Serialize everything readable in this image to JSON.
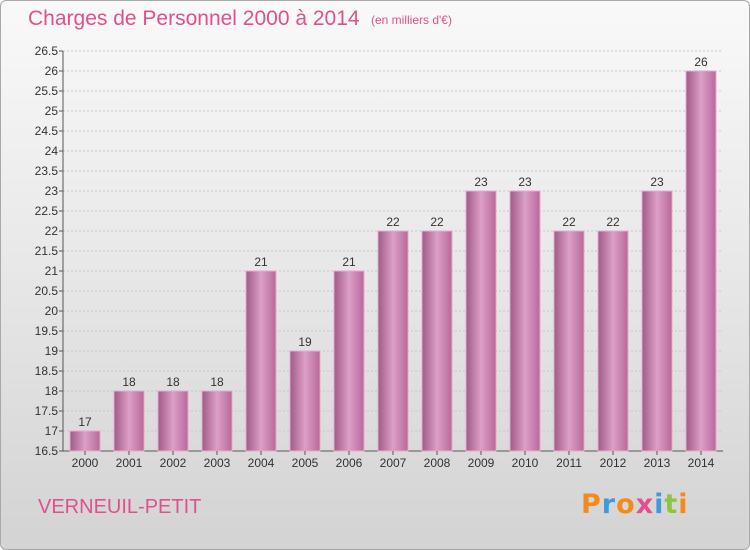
{
  "header": {
    "title": "Charges de Personnel 2000 à 2014",
    "subtitle": "(en milliers d'€)"
  },
  "footer": {
    "location": "VERNEUIL-PETIT",
    "brand_letters": [
      "P",
      "r",
      "o",
      "x",
      "i",
      "t",
      "i"
    ],
    "brand_colors": [
      "#f28a1c",
      "#3c9be0",
      "#f28a1c",
      "#e0508e",
      "#3c9be0",
      "#8cc63f",
      "#f28a1c"
    ]
  },
  "colors": {
    "bar_left": "#a05a86",
    "bar_mid": "#dc9fc6",
    "bar_right": "#b66a98",
    "bar_edge": "#e9a9cf",
    "grid": "#c8c8c8",
    "axis": "#555555"
  },
  "chart_data": {
    "type": "bar",
    "categories": [
      "2000",
      "2001",
      "2002",
      "2003",
      "2004",
      "2005",
      "2006",
      "2007",
      "2008",
      "2009",
      "2010",
      "2011",
      "2012",
      "2013",
      "2014"
    ],
    "values": [
      17,
      18,
      18,
      18,
      21,
      19,
      21,
      22,
      22,
      23,
      23,
      22,
      22,
      23,
      26
    ],
    "value_labels": [
      "17",
      "18",
      "18",
      "18",
      "21",
      "19",
      "21",
      "22",
      "22",
      "23",
      "23",
      "22",
      "22",
      "23",
      "26"
    ],
    "y_ticks": [
      "16.5",
      "17",
      "17.5",
      "18",
      "18.5",
      "19",
      "19.5",
      "20",
      "20.5",
      "21",
      "21.5",
      "22",
      "22.5",
      "23",
      "23.5",
      "24",
      "24.5",
      "25",
      "25.5",
      "26",
      "26.5"
    ],
    "ylim": [
      16.5,
      26.5
    ],
    "grid": true,
    "title": "Charges de Personnel 2000 à 2014",
    "xlabel": "",
    "ylabel": ""
  }
}
